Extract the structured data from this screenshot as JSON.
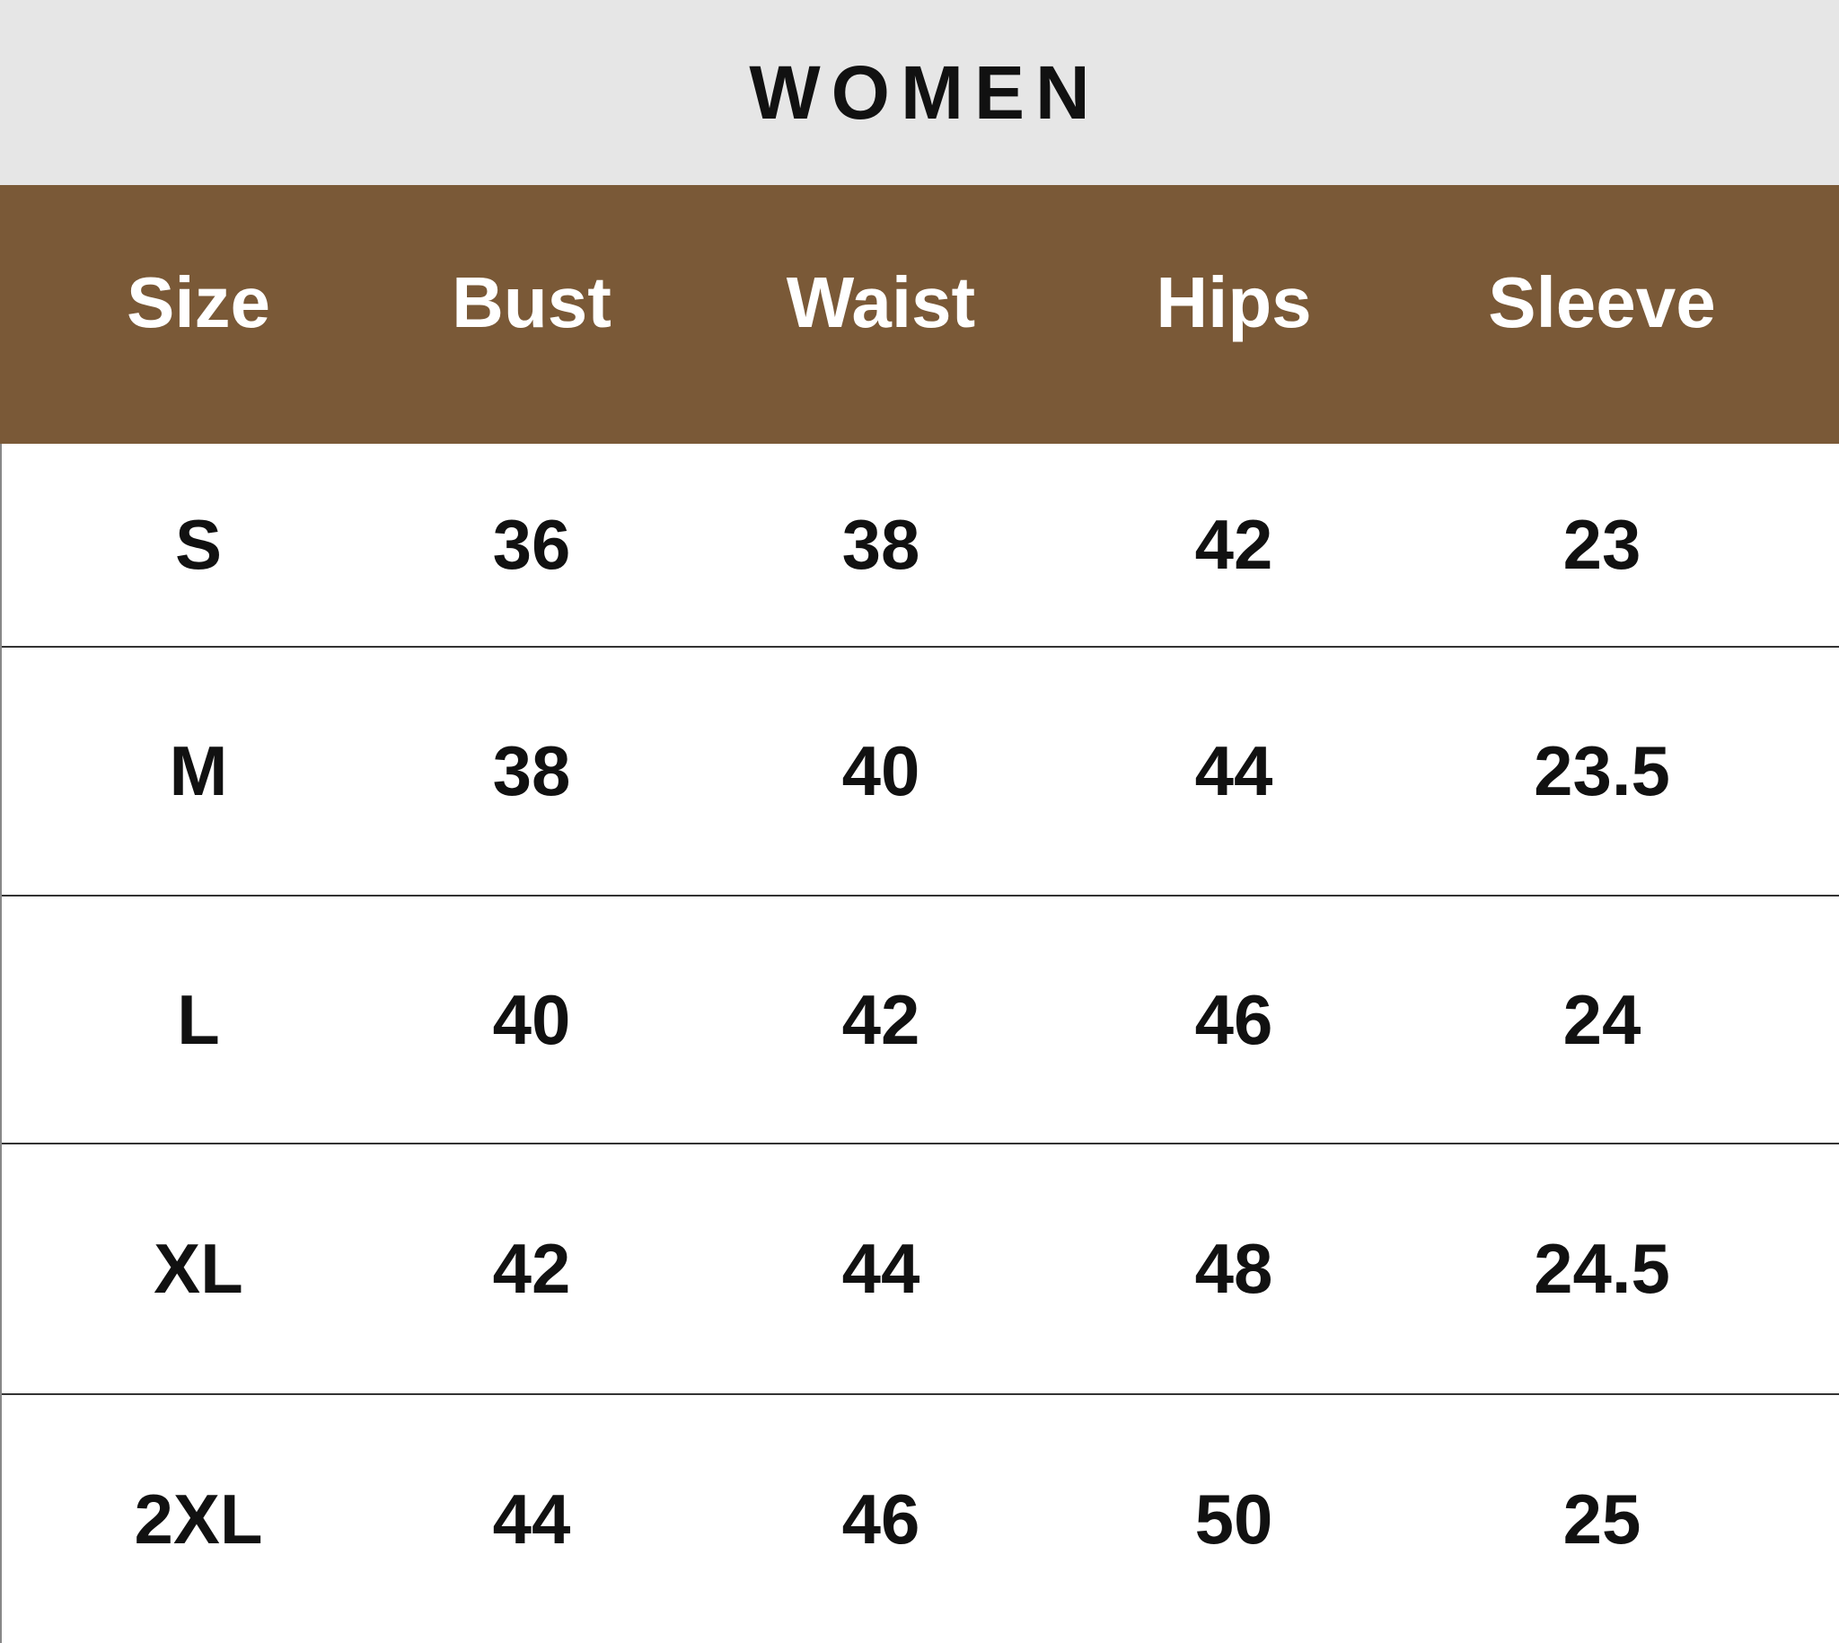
{
  "title": "WOMEN",
  "colors": {
    "header_bg": "#7a5937",
    "title_bg": "#e6e6e6"
  },
  "columns": [
    "Size",
    "Bust",
    "Waist",
    "Hips",
    "Sleeve"
  ],
  "rows": [
    [
      "S",
      "36",
      "38",
      "42",
      "23"
    ],
    [
      "M",
      "38",
      "40",
      "44",
      "23.5"
    ],
    [
      "L",
      "40",
      "42",
      "46",
      "24"
    ],
    [
      "XL",
      "42",
      "44",
      "48",
      "24.5"
    ],
    [
      "2XL",
      "44",
      "46",
      "50",
      "25"
    ]
  ]
}
